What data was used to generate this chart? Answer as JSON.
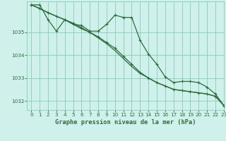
{
  "title": "Graphe pression niveau de la mer (hPa)",
  "bg_color": "#cff0eb",
  "grid_color": "#88ccbb",
  "line_color": "#2d6b3c",
  "xlim": [
    -0.5,
    23
  ],
  "ylim": [
    1031.6,
    1036.35
  ],
  "yticks": [
    1032,
    1033,
    1034,
    1035
  ],
  "xticks": [
    0,
    1,
    2,
    3,
    4,
    5,
    6,
    7,
    8,
    9,
    10,
    11,
    12,
    13,
    14,
    15,
    16,
    17,
    18,
    19,
    20,
    21,
    22,
    23
  ],
  "series1_x": [
    0,
    1,
    2,
    3,
    4,
    5,
    6,
    7,
    8,
    9,
    10,
    11,
    12,
    13,
    14,
    15,
    16,
    17,
    18,
    19,
    20,
    21,
    22,
    23
  ],
  "series1_y": [
    1036.2,
    1036.2,
    1035.55,
    1035.05,
    1035.55,
    1035.35,
    1035.3,
    1035.05,
    1035.05,
    1035.35,
    1035.75,
    1035.65,
    1035.65,
    1034.65,
    1034.05,
    1033.6,
    1033.05,
    1032.8,
    1032.85,
    1032.85,
    1032.8,
    1032.6,
    1032.3,
    1031.8
  ],
  "series2_x": [
    0,
    1,
    2,
    3,
    4,
    5,
    6,
    7,
    8,
    9,
    10,
    11,
    12,
    13,
    14,
    15,
    16,
    17,
    18,
    19,
    20,
    21,
    22,
    23
  ],
  "series2_y": [
    1036.2,
    1036.05,
    1035.85,
    1035.7,
    1035.55,
    1035.4,
    1035.2,
    1035.0,
    1034.8,
    1034.55,
    1034.3,
    1033.95,
    1033.6,
    1033.25,
    1033.0,
    1032.8,
    1032.65,
    1032.5,
    1032.45,
    1032.4,
    1032.35,
    1032.3,
    1032.2,
    1031.8
  ],
  "series3_x": [
    0,
    3,
    4,
    5,
    6,
    7,
    8,
    9,
    10,
    11,
    12,
    13,
    14,
    15,
    16,
    17,
    18,
    19,
    20,
    21,
    22,
    23
  ],
  "series3_y": [
    1036.2,
    1035.7,
    1035.55,
    1035.35,
    1035.15,
    1035.0,
    1034.75,
    1034.5,
    1034.2,
    1033.85,
    1033.5,
    1033.2,
    1033.0,
    1032.8,
    1032.65,
    1032.5,
    1032.45,
    1032.4,
    1032.35,
    1032.3,
    1032.2,
    1031.8
  ]
}
